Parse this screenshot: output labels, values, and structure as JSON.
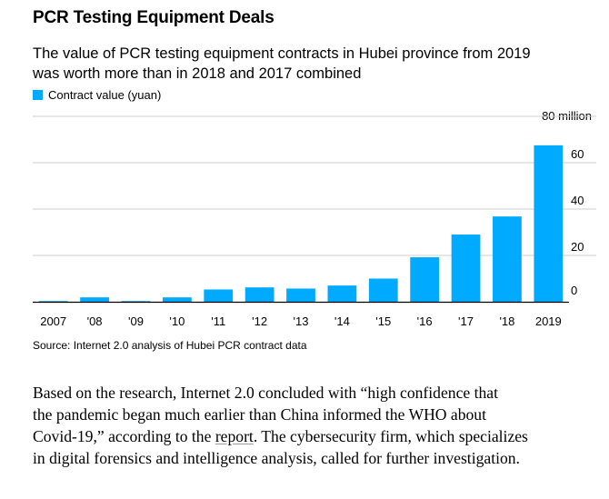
{
  "chart_data": {
    "type": "bar",
    "title": "PCR Testing Equipment Deals",
    "subtitle_lines": [
      "The value of PCR testing equipment contracts in Hubei province from 2019",
      "was worth more than in 2018 and 2017 combined"
    ],
    "legend": [
      {
        "label": "Contract value (yuan)",
        "color": "#00aaff"
      }
    ],
    "categories": [
      "2007",
      "'08",
      "'09",
      "'10",
      "'11",
      "'12",
      "'13",
      "'14",
      "'15",
      "'16",
      "'17",
      "'18",
      "2019"
    ],
    "values": [
      0.3,
      1.9,
      0.3,
      1.9,
      5.3,
      6.2,
      5.7,
      7.0,
      10.0,
      19.2,
      29.0,
      36.8,
      67.5
    ],
    "ylim": [
      0,
      80
    ],
    "y_ticks": [
      0,
      20,
      40,
      60
    ],
    "y_tick_labels": [
      "0",
      "20",
      "40",
      "60"
    ],
    "y_top_label": "80 million",
    "y_axis_side": "right",
    "grid": true,
    "xlabel": "",
    "ylabel": "",
    "colors": {
      "bar": "#00aaff",
      "grid": "#cccccc",
      "baseline": "#000000"
    },
    "source": "Source: Internet 2.0 analysis of Hubei PCR contract data"
  },
  "article": {
    "lines": [
      {
        "text": "Based on the research, Internet 2.0 concluded with “high confidence that"
      },
      {
        "text": "the pandemic began much earlier than China informed the WHO about"
      },
      {
        "before": "Covid-19,” according to the ",
        "link": "report",
        "after": ". The cybersecurity firm, which specializes"
      },
      {
        "text": "in digital forensics and intelligence analysis, called for further investigation."
      }
    ]
  }
}
